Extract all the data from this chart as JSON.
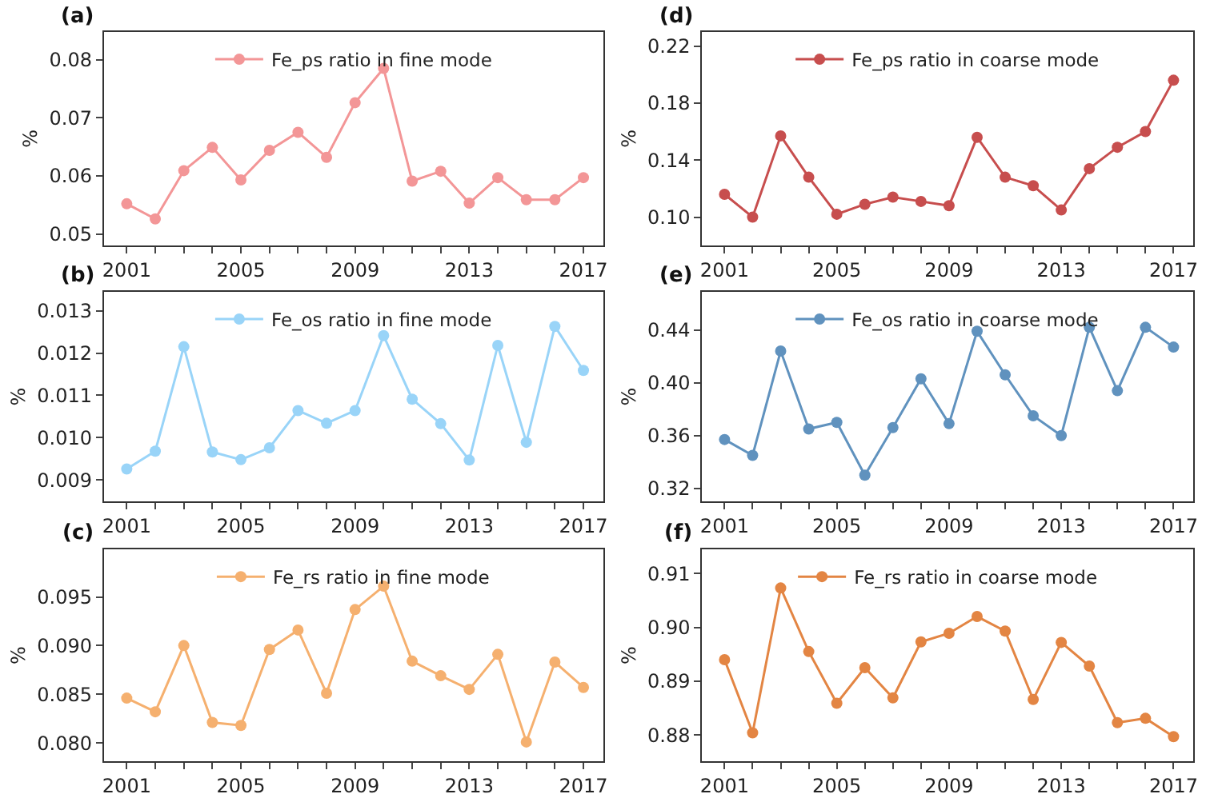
{
  "chart_data": [
    {
      "type": "line",
      "title": "(a)",
      "ylabel": "%",
      "legend": "top",
      "marker": "circle",
      "line_style": "solid",
      "x": [
        2001,
        2002,
        2003,
        2004,
        2005,
        2006,
        2007,
        2008,
        2009,
        2010,
        2011,
        2012,
        2013,
        2014,
        2015,
        2016,
        2017
      ],
      "xlim": [
        2000.2,
        2017.7
      ],
      "xticks": [
        2001,
        {
          "value": 2002,
          "label": null
        },
        {
          "value": 2003,
          "label": null
        },
        {
          "value": 2004,
          "label": null
        },
        2005,
        {
          "value": 2006,
          "label": null
        },
        {
          "value": 2007,
          "label": null
        },
        {
          "value": 2008,
          "label": null
        },
        2009,
        {
          "value": 2010,
          "label": null
        },
        {
          "value": 2011,
          "label": null
        },
        {
          "value": 2012,
          "label": null
        },
        2013,
        {
          "value": 2014,
          "label": null
        },
        {
          "value": 2015,
          "label": null
        },
        {
          "value": 2016,
          "label": null
        },
        2017
      ],
      "ylim": [
        0.048,
        0.0848
      ],
      "yticks": [
        0.05,
        0.06,
        0.07,
        0.08
      ],
      "series": [
        {
          "name": "Fe_ps ratio in fine mode",
          "color": "#f28b8c",
          "values": [
            0.0552,
            0.0526,
            0.0609,
            0.0649,
            0.0593,
            0.0644,
            0.0675,
            0.0632,
            0.0726,
            0.0785,
            0.0591,
            0.0608,
            0.0553,
            0.0597,
            0.0559,
            0.0559,
            0.0597
          ]
        }
      ]
    },
    {
      "type": "line",
      "title": "(d)",
      "ylabel": "%",
      "legend": "top",
      "marker": "circle",
      "line_style": "solid",
      "x": [
        2001,
        2002,
        2003,
        2004,
        2005,
        2006,
        2007,
        2008,
        2009,
        2010,
        2011,
        2012,
        2013,
        2014,
        2015,
        2016,
        2017
      ],
      "xlim": [
        2000.2,
        2017.7
      ],
      "xticks": [
        2001,
        {
          "value": 2002,
          "label": null
        },
        {
          "value": 2003,
          "label": null
        },
        {
          "value": 2004,
          "label": null
        },
        2005,
        {
          "value": 2006,
          "label": null
        },
        {
          "value": 2007,
          "label": null
        },
        {
          "value": 2008,
          "label": null
        },
        2009,
        {
          "value": 2010,
          "label": null
        },
        {
          "value": 2011,
          "label": null
        },
        {
          "value": 2012,
          "label": null
        },
        2013,
        {
          "value": 2014,
          "label": null
        },
        {
          "value": 2015,
          "label": null
        },
        {
          "value": 2016,
          "label": null
        },
        2017
      ],
      "ylim": [
        0.08,
        0.23
      ],
      "yticks": [
        {
          "value": 0.1,
          "label": "0.10"
        },
        0.14,
        0.18,
        0.22
      ],
      "series": [
        {
          "name": "Fe_ps ratio in coarse mode",
          "color": "#c23b3b",
          "values": [
            0.116,
            0.1,
            0.157,
            0.128,
            0.102,
            0.109,
            0.114,
            0.111,
            0.108,
            0.156,
            0.128,
            0.122,
            0.105,
            0.134,
            0.149,
            0.16,
            0.196
          ]
        }
      ]
    },
    {
      "type": "line",
      "title": "(b)",
      "ylabel": "%",
      "legend": "top",
      "marker": "circle",
      "line_style": "solid",
      "x": [
        2001,
        2002,
        2003,
        2004,
        2005,
        2006,
        2007,
        2008,
        2009,
        2010,
        2011,
        2012,
        2013,
        2014,
        2015,
        2016,
        2017
      ],
      "xlim": [
        2000.2,
        2017.7
      ],
      "xticks": [
        2001,
        {
          "value": 2002,
          "label": null
        },
        {
          "value": 2003,
          "label": null
        },
        {
          "value": 2004,
          "label": null
        },
        2005,
        {
          "value": 2006,
          "label": null
        },
        {
          "value": 2007,
          "label": null
        },
        {
          "value": 2008,
          "label": null
        },
        2009,
        {
          "value": 2010,
          "label": null
        },
        {
          "value": 2011,
          "label": null
        },
        {
          "value": 2012,
          "label": null
        },
        2013,
        {
          "value": 2014,
          "label": null
        },
        {
          "value": 2015,
          "label": null
        },
        {
          "value": 2016,
          "label": null
        },
        2017
      ],
      "ylim": [
        0.00849,
        0.01345
      ],
      "yticks": [
        0.009,
        {
          "value": 0.01,
          "label": "0.010"
        },
        0.011,
        0.012,
        0.013
      ],
      "series": [
        {
          "name": "Fe_os ratio in fine mode",
          "color": "#8fd0f8",
          "values": [
            0.00926,
            0.00968,
            0.01215,
            0.00966,
            0.00948,
            0.00976,
            0.01064,
            0.01034,
            0.01064,
            0.01241,
            0.01091,
            0.01033,
            0.00947,
            0.01218,
            0.00989,
            0.01263,
            0.01159
          ]
        }
      ]
    },
    {
      "type": "line",
      "title": "(e)",
      "ylabel": "%",
      "legend": "top",
      "marker": "circle",
      "line_style": "solid",
      "x": [
        2001,
        2002,
        2003,
        2004,
        2005,
        2006,
        2007,
        2008,
        2009,
        2010,
        2011,
        2012,
        2013,
        2014,
        2015,
        2016,
        2017
      ],
      "xlim": [
        2000.2,
        2017.7
      ],
      "xticks": [
        2001,
        {
          "value": 2002,
          "label": null
        },
        {
          "value": 2003,
          "label": null
        },
        {
          "value": 2004,
          "label": null
        },
        2005,
        {
          "value": 2006,
          "label": null
        },
        {
          "value": 2007,
          "label": null
        },
        {
          "value": 2008,
          "label": null
        },
        2009,
        {
          "value": 2010,
          "label": null
        },
        {
          "value": 2011,
          "label": null
        },
        {
          "value": 2012,
          "label": null
        },
        2013,
        {
          "value": 2014,
          "label": null
        },
        {
          "value": 2015,
          "label": null
        },
        {
          "value": 2016,
          "label": null
        },
        2017
      ],
      "ylim": [
        0.31,
        0.469
      ],
      "yticks": [
        0.32,
        0.36,
        {
          "value": 0.4,
          "label": "0.40"
        },
        0.44
      ],
      "series": [
        {
          "name": "Fe_os ratio in coarse mode",
          "color": "#4f87b8",
          "values": [
            0.357,
            0.345,
            0.424,
            0.365,
            0.37,
            0.33,
            0.366,
            0.403,
            0.369,
            0.439,
            0.406,
            0.375,
            0.36,
            0.442,
            0.394,
            0.442,
            0.427
          ]
        }
      ]
    },
    {
      "type": "line",
      "title": "(c)",
      "ylabel": "%",
      "legend": "top",
      "marker": "circle",
      "line_style": "solid",
      "x": [
        2001,
        2002,
        2003,
        2004,
        2005,
        2006,
        2007,
        2008,
        2009,
        2010,
        2011,
        2012,
        2013,
        2014,
        2015,
        2016,
        2017
      ],
      "xlim": [
        2000.2,
        2017.7
      ],
      "xticks": [
        2001,
        {
          "value": 2002,
          "label": null
        },
        {
          "value": 2003,
          "label": null
        },
        {
          "value": 2004,
          "label": null
        },
        2005,
        {
          "value": 2006,
          "label": null
        },
        {
          "value": 2007,
          "label": null
        },
        {
          "value": 2008,
          "label": null
        },
        2009,
        {
          "value": 2010,
          "label": null
        },
        {
          "value": 2011,
          "label": null
        },
        {
          "value": 2012,
          "label": null
        },
        2013,
        {
          "value": 2014,
          "label": null
        },
        {
          "value": 2015,
          "label": null
        },
        {
          "value": 2016,
          "label": null
        },
        2017
      ],
      "ylim": [
        0.0781,
        0.0999
      ],
      "yticks": [
        {
          "value": 0.08,
          "label": "0.080"
        },
        0.085,
        {
          "value": 0.09,
          "label": "0.090"
        },
        0.095
      ],
      "series": [
        {
          "name": "Fe_rs ratio in fine mode",
          "color": "#f5a860",
          "values": [
            0.0846,
            0.0832,
            0.09,
            0.0821,
            0.0818,
            0.0896,
            0.0916,
            0.0851,
            0.0937,
            0.0961,
            0.0884,
            0.0869,
            0.0855,
            0.0891,
            0.0801,
            0.0883,
            0.0857
          ]
        }
      ]
    },
    {
      "type": "line",
      "title": "(f)",
      "ylabel": "%",
      "legend": "top",
      "marker": "circle",
      "line_style": "solid",
      "x": [
        2001,
        2002,
        2003,
        2004,
        2005,
        2006,
        2007,
        2008,
        2009,
        2010,
        2011,
        2012,
        2013,
        2014,
        2015,
        2016,
        2017
      ],
      "xlim": [
        2000.2,
        2017.7
      ],
      "xticks": [
        2001,
        {
          "value": 2002,
          "label": null
        },
        {
          "value": 2003,
          "label": null
        },
        {
          "value": 2004,
          "label": null
        },
        2005,
        {
          "value": 2006,
          "label": null
        },
        {
          "value": 2007,
          "label": null
        },
        {
          "value": 2008,
          "label": null
        },
        2009,
        {
          "value": 2010,
          "label": null
        },
        {
          "value": 2011,
          "label": null
        },
        {
          "value": 2012,
          "label": null
        },
        2013,
        {
          "value": 2014,
          "label": null
        },
        {
          "value": 2015,
          "label": null
        },
        {
          "value": 2016,
          "label": null
        },
        2017
      ],
      "ylim": [
        0.8751,
        0.9145
      ],
      "yticks": [
        0.88,
        0.89,
        {
          "value": 0.9,
          "label": "0.90"
        },
        0.91
      ],
      "series": [
        {
          "name": "Fe_rs ratio in coarse mode",
          "color": "#e0782f",
          "values": [
            0.894,
            0.8804,
            0.9073,
            0.8955,
            0.8859,
            0.8925,
            0.8869,
            0.8973,
            0.8989,
            0.902,
            0.8993,
            0.8866,
            0.8972,
            0.8928,
            0.8823,
            0.8831,
            0.8797
          ]
        }
      ]
    }
  ]
}
